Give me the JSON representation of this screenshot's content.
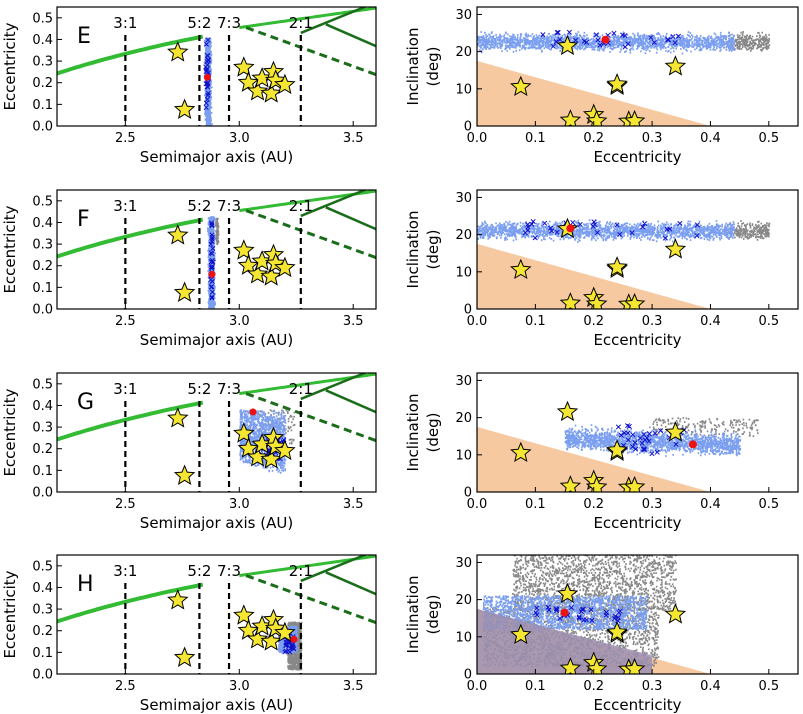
{
  "colors": {
    "green_light": "#33bb33",
    "green_dark": "#1a6e1a",
    "blue_fill": "#7a9ef0",
    "gray_fill": "#888888",
    "star_fill": "#f5e632",
    "star_edge": "#000000",
    "red_dot": "#ee1111",
    "x_mark": "#1111cc",
    "peach": "#f6c9a0",
    "overlap": "#9b8fb2"
  },
  "chart_data": {
    "type": "scatter",
    "left_axis": {
      "xlabel": "Semimajor axis (AU)",
      "ylabel": "Eccentricity",
      "xlim": [
        2.2,
        3.6
      ],
      "ylim": [
        0.0,
        0.55
      ],
      "xticks": [
        "2.5",
        "3.0",
        "3.5"
      ],
      "yticks": [
        "0.0",
        "0.1",
        "0.2",
        "0.3",
        "0.4",
        "0.5"
      ],
      "resonances": [
        {
          "label": "3:1",
          "a": 2.5
        },
        {
          "label": "5:2",
          "a": 2.825
        },
        {
          "label": "7:3",
          "a": 2.955
        },
        {
          "label": "2:1",
          "a": 3.27
        }
      ]
    },
    "right_axis": {
      "xlabel": "Eccentricity",
      "ylabel_lines": [
        "Inclination",
        "(deg)"
      ],
      "xlim": [
        0.0,
        0.55
      ],
      "ylim": [
        0,
        32
      ],
      "xticks": [
        "0.0",
        "0.1",
        "0.2",
        "0.3",
        "0.4",
        "0.5"
      ],
      "yticks": [
        "0",
        "10",
        "20",
        "30"
      ]
    },
    "stars_left": [
      [
        2.73,
        0.34
      ],
      [
        2.76,
        0.075
      ],
      [
        3.02,
        0.27
      ],
      [
        3.04,
        0.2
      ],
      [
        3.08,
        0.16
      ],
      [
        3.1,
        0.22
      ],
      [
        3.14,
        0.15
      ],
      [
        3.15,
        0.25
      ],
      [
        3.16,
        0.21
      ],
      [
        3.2,
        0.19
      ]
    ],
    "stars_right": [
      [
        0.075,
        10.5
      ],
      [
        0.155,
        21.5
      ],
      [
        0.16,
        1.5
      ],
      [
        0.2,
        3.0
      ],
      [
        0.205,
        1.3
      ],
      [
        0.24,
        10.8
      ],
      [
        0.24,
        11.2
      ],
      [
        0.26,
        1.2
      ],
      [
        0.27,
        1.3
      ],
      [
        0.34,
        16
      ]
    ],
    "panels": [
      {
        "label": "E",
        "red_left": [
          2.86,
          0.225
        ],
        "red_right": [
          0.22,
          23.2
        ]
      },
      {
        "label": "F",
        "red_left": [
          2.88,
          0.16
        ],
        "red_right": [
          0.16,
          21.7
        ]
      },
      {
        "label": "G",
        "red_left": [
          3.06,
          0.37
        ],
        "red_right": [
          0.37,
          12.8
        ]
      },
      {
        "label": "H",
        "red_left": [
          3.24,
          0.16
        ],
        "red_right": [
          0.15,
          16.5
        ]
      }
    ]
  }
}
